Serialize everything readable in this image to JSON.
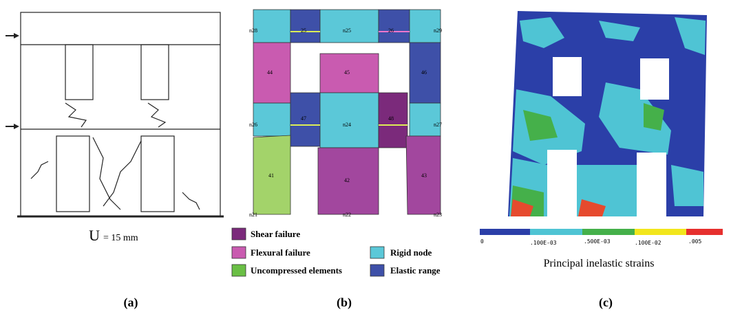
{
  "panel_a": {
    "caption_symbol": "U",
    "caption": "= 15 mm",
    "label": "(a)"
  },
  "panel_b": {
    "elements": [
      "41",
      "42",
      "43",
      "44",
      "45",
      "46",
      "47",
      "48",
      "25",
      "26"
    ],
    "nodes": [
      "n28",
      "n25",
      "n29",
      "n26",
      "n24",
      "n27",
      "n21",
      "n22",
      "n23"
    ],
    "legend": [
      "Shear failure",
      "Flexural failure",
      "Uncompressed elements",
      "Rigid node",
      "Elastic range"
    ],
    "label": "(b)"
  },
  "panel_c": {
    "colorbar_ticks": [
      "0",
      ".100E-03",
      ".500E-03",
      ".100E-02",
      ".005"
    ],
    "title": "Principal inelastic strains",
    "label": "(c)"
  }
}
